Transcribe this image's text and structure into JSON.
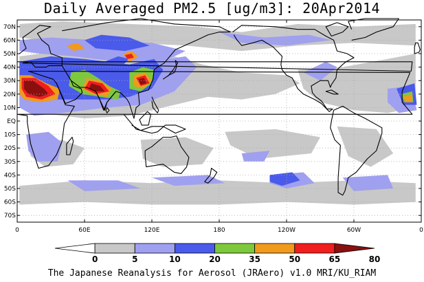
{
  "map": {
    "title": "Daily Averaged PM2.5 [ug/m3]: 20Apr2014",
    "footer": "The Japanese Reanalysis for Aerosol (JRAero) v1.0 MRI/KU_RIAM",
    "projection": "cylindrical-equidistant",
    "lon_range": [
      0,
      360
    ],
    "lat_range": [
      -75,
      75
    ],
    "grid": true,
    "lat_ticks": [
      {
        "lat": 70,
        "label": "70N"
      },
      {
        "lat": 60,
        "label": "60N"
      },
      {
        "lat": 50,
        "label": "50N"
      },
      {
        "lat": 40,
        "label": "40N"
      },
      {
        "lat": 30,
        "label": "30N"
      },
      {
        "lat": 20,
        "label": "20N"
      },
      {
        "lat": 10,
        "label": "10N"
      },
      {
        "lat": 0,
        "label": "EQ"
      },
      {
        "lat": -10,
        "label": "10S"
      },
      {
        "lat": -20,
        "label": "20S"
      },
      {
        "lat": -30,
        "label": "30S"
      },
      {
        "lat": -40,
        "label": "40S"
      },
      {
        "lat": -50,
        "label": "50S"
      },
      {
        "lat": -60,
        "label": "60S"
      },
      {
        "lat": -70,
        "label": "70S"
      }
    ],
    "lon_ticks": [
      {
        "lon": 0,
        "label": "0"
      },
      {
        "lon": 60,
        "label": "60E"
      },
      {
        "lon": 120,
        "label": "120E"
      },
      {
        "lon": 180,
        "label": "180"
      },
      {
        "lon": 240,
        "label": "120W"
      },
      {
        "lon": 300,
        "label": "60W"
      },
      {
        "lon": 360,
        "label": "0"
      }
    ]
  },
  "colorbar": {
    "labels": [
      "0",
      "5",
      "10",
      "20",
      "35",
      "50",
      "65",
      "80"
    ],
    "colors": [
      "#ffffff",
      "#c8c8c8",
      "#a0a0f0",
      "#4a5aea",
      "#7ec83c",
      "#f09a1e",
      "#f01e1e",
      "#8a1010"
    ]
  },
  "palette": {
    "coast": "#000000",
    "grid": "#a8a8a8",
    "bin_5_10": "#c8c8c8",
    "bin_10_20": "#a0a0f0",
    "bin_20_35": "#4a5aea",
    "bin_35_50": "#7ec83c",
    "bin_50_65": "#f09a1e",
    "bin_65_80": "#f01e1e",
    "bin_80_plus": "#8a1010"
  }
}
